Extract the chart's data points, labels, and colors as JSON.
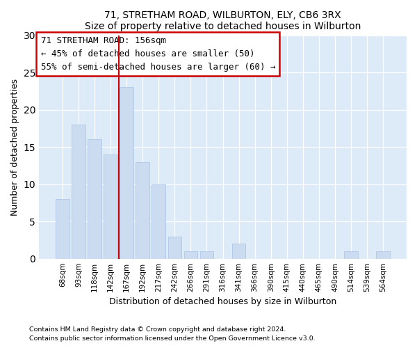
{
  "title1": "71, STRETHAM ROAD, WILBURTON, ELY, CB6 3RX",
  "title2": "Size of property relative to detached houses in Wilburton",
  "xlabel": "Distribution of detached houses by size in Wilburton",
  "ylabel": "Number of detached properties",
  "categories": [
    "68sqm",
    "93sqm",
    "118sqm",
    "142sqm",
    "167sqm",
    "192sqm",
    "217sqm",
    "242sqm",
    "266sqm",
    "291sqm",
    "316sqm",
    "341sqm",
    "366sqm",
    "390sqm",
    "415sqm",
    "440sqm",
    "465sqm",
    "490sqm",
    "514sqm",
    "539sqm",
    "564sqm"
  ],
  "values": [
    8,
    18,
    16,
    14,
    23,
    13,
    10,
    3,
    1,
    1,
    0,
    2,
    0,
    0,
    0,
    0,
    0,
    0,
    1,
    0,
    1
  ],
  "bar_color": "#ccdcf0",
  "bar_edge_color": "#b0c8e8",
  "vline_x": 3.5,
  "vline_color": "#cc0000",
  "annotation_line1": "71 STRETHAM ROAD: 156sqm",
  "annotation_line2": "← 45% of detached houses are smaller (50)",
  "annotation_line3": "55% of semi-detached houses are larger (60) →",
  "annotation_box_color": "white",
  "annotation_box_edge": "#cc0000",
  "ylim": [
    0,
    30
  ],
  "yticks": [
    0,
    5,
    10,
    15,
    20,
    25,
    30
  ],
  "footer1": "Contains HM Land Registry data © Crown copyright and database right 2024.",
  "footer2": "Contains public sector information licensed under the Open Government Licence v3.0.",
  "bg_color": "#ffffff",
  "plot_bg_color": "#ddeaf8"
}
